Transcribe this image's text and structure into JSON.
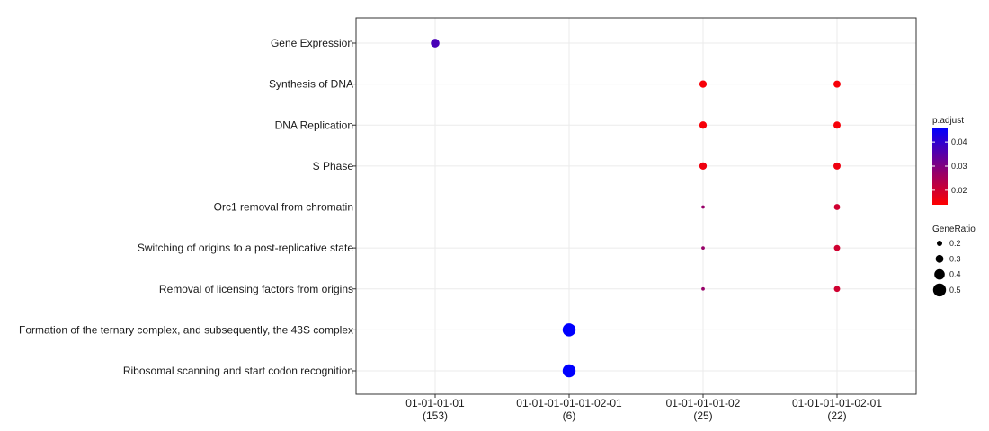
{
  "chart_data": {
    "type": "scatter",
    "title": "",
    "xlabel": "",
    "ylabel": "",
    "grid": true,
    "legend_position": "right",
    "x_categories": [
      {
        "label": "01-01-01-01",
        "count": "(153)"
      },
      {
        "label": "01-01-01-01-01-02-01",
        "count": "(6)"
      },
      {
        "label": "01-01-01-01-02",
        "count": "(25)"
      },
      {
        "label": "01-01-01-01-02-01",
        "count": "(22)"
      }
    ],
    "y_categories": [
      "Gene Expression",
      "Synthesis of DNA",
      "DNA Replication",
      "S Phase",
      "Orc1 removal from chromatin",
      "Switching of origins to a post-replicative state",
      "Removal of licensing factors from origins",
      "Formation of the ternary complex, and subsequently, the 43S complex",
      "Ribosomal scanning and start codon recognition"
    ],
    "points": [
      {
        "x": "01-01-01-01",
        "y": "Gene Expression",
        "gene_ratio": 0.33,
        "p_adjust": 0.037
      },
      {
        "x": "01-01-01-01-02",
        "y": "Synthesis of DNA",
        "gene_ratio": 0.28,
        "p_adjust": 0.015
      },
      {
        "x": "01-01-01-01-02-01",
        "y": "Synthesis of DNA",
        "gene_ratio": 0.27,
        "p_adjust": 0.015
      },
      {
        "x": "01-01-01-01-02",
        "y": "DNA Replication",
        "gene_ratio": 0.28,
        "p_adjust": 0.015
      },
      {
        "x": "01-01-01-01-02-01",
        "y": "DNA Replication",
        "gene_ratio": 0.27,
        "p_adjust": 0.015
      },
      {
        "x": "01-01-01-01-02",
        "y": "S Phase",
        "gene_ratio": 0.28,
        "p_adjust": 0.016
      },
      {
        "x": "01-01-01-01-02-01",
        "y": "S Phase",
        "gene_ratio": 0.27,
        "p_adjust": 0.016
      },
      {
        "x": "01-01-01-01-02",
        "y": "Orc1 removal from chromatin",
        "gene_ratio": 0.12,
        "p_adjust": 0.027
      },
      {
        "x": "01-01-01-01-02-01",
        "y": "Orc1 removal from chromatin",
        "gene_ratio": 0.23,
        "p_adjust": 0.02
      },
      {
        "x": "01-01-01-01-02",
        "y": "Switching of origins to a post-replicative state",
        "gene_ratio": 0.12,
        "p_adjust": 0.027
      },
      {
        "x": "01-01-01-01-02-01",
        "y": "Switching of origins to a post-replicative state",
        "gene_ratio": 0.23,
        "p_adjust": 0.02
      },
      {
        "x": "01-01-01-01-02",
        "y": "Removal of licensing factors from origins",
        "gene_ratio": 0.12,
        "p_adjust": 0.027
      },
      {
        "x": "01-01-01-01-02-01",
        "y": "Removal of licensing factors from origins",
        "gene_ratio": 0.23,
        "p_adjust": 0.02
      },
      {
        "x": "01-01-01-01-01-02-01",
        "y": "Formation of the ternary complex, and subsequently, the 43S complex",
        "gene_ratio": 0.5,
        "p_adjust": 0.046
      },
      {
        "x": "01-01-01-01-01-02-01",
        "y": "Ribosomal scanning and start codon recognition",
        "gene_ratio": 0.5,
        "p_adjust": 0.046
      }
    ],
    "color_legend": {
      "title": "p.adjust",
      "ticks": [
        0.04,
        0.03,
        0.02
      ],
      "tick_labels": [
        "0.04",
        "0.03",
        "0.02"
      ],
      "range": [
        0.014,
        0.046
      ],
      "low_color": "#ff0000",
      "high_color": "#0000ff"
    },
    "size_legend": {
      "title": "GeneRatio",
      "values": [
        0.2,
        0.3,
        0.4,
        0.5
      ],
      "labels": [
        "0.2",
        "0.3",
        "0.4",
        "0.5"
      ],
      "range": [
        0.1,
        0.5
      ]
    }
  }
}
